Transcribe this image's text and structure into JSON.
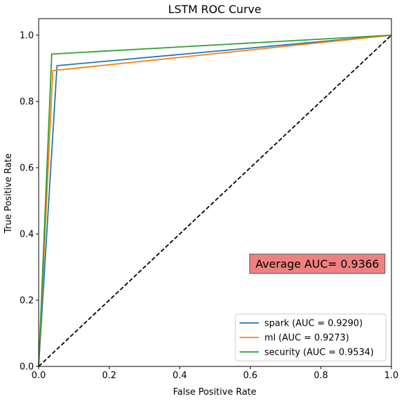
{
  "chart_data": {
    "type": "line",
    "title": "LSTM ROC Curve",
    "xlabel": "False Positive Rate",
    "ylabel": "True Positive Rate",
    "xlim": [
      0.0,
      1.0
    ],
    "ylim": [
      0.0,
      1.05
    ],
    "x_ticks": [
      0.0,
      0.2,
      0.4,
      0.6,
      0.8,
      1.0
    ],
    "y_ticks": [
      0.0,
      0.2,
      0.4,
      0.6,
      0.8,
      1.0
    ],
    "x_tick_labels": [
      "0.0",
      "0.2",
      "0.4",
      "0.6",
      "0.8",
      "1.0"
    ],
    "y_tick_labels": [
      "0.0",
      "0.2",
      "0.4",
      "0.6",
      "0.8",
      "1.0"
    ],
    "grid": false,
    "legend_position": "lower-right",
    "series": [
      {
        "name": "spark (AUC = 0.9290)",
        "color": "#1f77b4",
        "x": [
          0.0,
          0.052,
          1.0
        ],
        "y": [
          0.0,
          0.908,
          1.0
        ]
      },
      {
        "name": "ml (AUC = 0.9273)",
        "color": "#ff7f0e",
        "x": [
          0.0,
          0.04,
          1.0
        ],
        "y": [
          0.0,
          0.893,
          1.0
        ]
      },
      {
        "name": "security (AUC = 0.9534)",
        "color": "#2ca02c",
        "x": [
          0.0,
          0.037,
          1.0
        ],
        "y": [
          0.0,
          0.943,
          1.0
        ]
      }
    ],
    "reference_line": {
      "x": [
        0.0,
        1.0
      ],
      "y": [
        0.0,
        1.0
      ],
      "color": "#000000",
      "style": "dashed"
    },
    "annotation": {
      "text": "Average AUC= 0.9366",
      "background": "#f08080",
      "border": "#555555",
      "x": 0.79,
      "y": 0.31
    }
  }
}
